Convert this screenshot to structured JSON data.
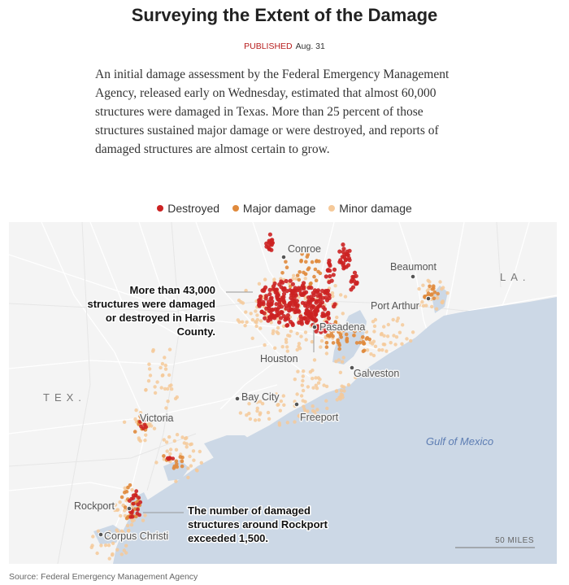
{
  "headline": "Surveying the Extent of the Damage",
  "published": {
    "label": "PUBLISHED",
    "date": "Aug. 31"
  },
  "intro": "An initial damage assessment by the Federal Emergency Management Agency, released early on Wednesday, estimated that almost 60,000 structures were damaged in Texas. More than 25 percent of those structures sustained major damage or were destroyed, and reports of damaged structures are almost certain to grow.",
  "legend": [
    {
      "label": "Destroyed",
      "color": "#cc2222"
    },
    {
      "label": "Major damage",
      "color": "#e08a3c"
    },
    {
      "label": "Minor damage",
      "color": "#f5c999"
    }
  ],
  "map": {
    "cities": [
      "Conroe",
      "Beaumont",
      "Port Arthur",
      "Pasadena",
      "Houston",
      "Galveston",
      "Bay City",
      "Freeport",
      "Victoria",
      "Rockport",
      "Corpus Christi"
    ],
    "states": {
      "louisiana": "LA.",
      "texas": "TEX."
    },
    "water": "Gulf of Mexico",
    "annotations": {
      "harris": [
        "More than 43,000",
        "structures were damaged",
        "or destroyed in Harris",
        "County."
      ],
      "rockport": [
        "The number of damaged",
        "structures around Rockport",
        "exceeded 1,500."
      ]
    },
    "scale": "50 MILES"
  },
  "source": "Source: Federal Emergency Management Agency"
}
